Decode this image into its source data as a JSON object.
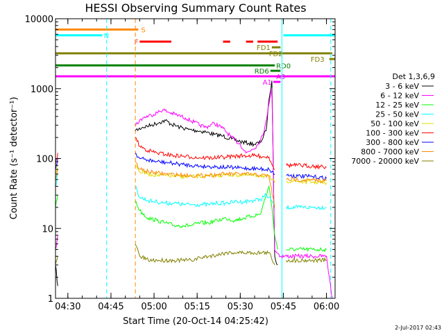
{
  "chart_data": {
    "type": "line",
    "title": "HESSI Observing Summary Count Rates",
    "xlabel": "Start Time (20-Oct-14 04:25:42)",
    "ylabel": "Count Rate (s⁻¹ detector⁻¹)",
    "x_range": [
      "04:25:42",
      "06:03:00"
    ],
    "y_range": [
      1,
      10000
    ],
    "y_scale": "log",
    "x_ticks": [
      "04:30",
      "04:45",
      "05:00",
      "05:15",
      "05:30",
      "05:45",
      "06:00"
    ],
    "y_ticks": [
      "1",
      "10",
      "100",
      "1000",
      "10000"
    ],
    "timestamp": "2-Jul-2017 02:43",
    "legend": {
      "title": "Det 1,3,6,9",
      "placement": "right"
    },
    "series": [
      {
        "name": "3 - 6 keV",
        "color": "#000000",
        "data": [
          [
            "04:25:42",
            3
          ],
          [
            "04:26:30",
            1.5
          ],
          [
            "04:27:00",
            null
          ],
          [
            "04:53:30",
            250
          ],
          [
            "04:56",
            280
          ],
          [
            "04:59",
            300
          ],
          [
            "05:02",
            330
          ],
          [
            "05:04",
            350
          ],
          [
            "05:06",
            310
          ],
          [
            "05:09",
            280
          ],
          [
            "05:12",
            260
          ],
          [
            "05:15",
            250
          ],
          [
            "05:18",
            240
          ],
          [
            "05:21",
            220
          ],
          [
            "05:24",
            210
          ],
          [
            "05:27",
            190
          ],
          [
            "05:30",
            175
          ],
          [
            "05:33",
            165
          ],
          [
            "05:35",
            160
          ],
          [
            "05:37",
            170
          ],
          [
            "05:39",
            250
          ],
          [
            "05:40",
            700
          ],
          [
            "05:41",
            1300
          ],
          [
            "05:42",
            4
          ],
          [
            "05:43",
            3
          ],
          [
            "05:44",
            null
          ]
        ]
      },
      {
        "name": "6 - 12 keV",
        "color": "#ff00ff",
        "data": [
          [
            "04:25:42",
            5
          ],
          [
            "04:26:30",
            8
          ],
          [
            "04:27:00",
            null
          ],
          [
            "04:53:30",
            300
          ],
          [
            "04:56",
            380
          ],
          [
            "04:59",
            420
          ],
          [
            "05:01",
            450
          ],
          [
            "05:03",
            500
          ],
          [
            "05:05",
            460
          ],
          [
            "05:08",
            420
          ],
          [
            "05:11",
            380
          ],
          [
            "05:14",
            330
          ],
          [
            "05:16",
            300
          ],
          [
            "05:18",
            280
          ],
          [
            "05:21",
            320
          ],
          [
            "05:24",
            270
          ],
          [
            "05:27",
            200
          ],
          [
            "05:30",
            160
          ],
          [
            "05:32",
            120
          ],
          [
            "05:34",
            135
          ],
          [
            "05:36",
            155
          ],
          [
            "05:38",
            220
          ],
          [
            "05:40",
            600
          ],
          [
            "05:41",
            1000
          ],
          [
            "05:42",
            5
          ],
          [
            "05:44",
            4
          ],
          [
            "05:50",
            4
          ],
          [
            "05:55",
            4
          ],
          [
            "06:00",
            4
          ],
          [
            "06:01",
            2
          ],
          [
            "06:02",
            1
          ]
        ]
      },
      {
        "name": "12 - 25 keV",
        "color": "#00ff00",
        "data": [
          [
            "04:25:42",
            20
          ],
          [
            "04:26:30",
            30
          ],
          [
            "04:27:00",
            null
          ],
          [
            "04:53:30",
            25
          ],
          [
            "04:55",
            18
          ],
          [
            "04:58",
            14
          ],
          [
            "05:01",
            13
          ],
          [
            "05:04",
            12
          ],
          [
            "05:07",
            11
          ],
          [
            "05:10",
            11
          ],
          [
            "05:13",
            11
          ],
          [
            "05:16",
            12
          ],
          [
            "05:19",
            12
          ],
          [
            "05:22",
            13
          ],
          [
            "05:25",
            14
          ],
          [
            "05:28",
            13
          ],
          [
            "05:31",
            14
          ],
          [
            "05:34",
            15
          ],
          [
            "05:37",
            16
          ],
          [
            "05:39",
            30
          ],
          [
            "05:40",
            40
          ],
          [
            "05:41",
            20
          ],
          [
            "05:42",
            8
          ],
          [
            "05:43",
            5
          ],
          [
            "05:44",
            null
          ],
          [
            "05:46",
            5
          ],
          [
            "05:50",
            5
          ],
          [
            "05:55",
            5
          ],
          [
            "06:00",
            5
          ]
        ]
      },
      {
        "name": "25 - 50 keV",
        "color": "#00ffff",
        "data": [
          [
            "04:25:42",
            40
          ],
          [
            "04:26:30",
            60
          ],
          [
            "04:27:00",
            null
          ],
          [
            "04:53:30",
            40
          ],
          [
            "04:55",
            28
          ],
          [
            "04:58",
            25
          ],
          [
            "05:01",
            24
          ],
          [
            "05:04",
            23
          ],
          [
            "05:07",
            23
          ],
          [
            "05:10",
            22
          ],
          [
            "05:13",
            22
          ],
          [
            "05:16",
            22
          ],
          [
            "05:19",
            22
          ],
          [
            "05:22",
            23
          ],
          [
            "05:25",
            23
          ],
          [
            "05:28",
            24
          ],
          [
            "05:31",
            24
          ],
          [
            "05:34",
            25
          ],
          [
            "05:37",
            26
          ],
          [
            "05:39",
            30
          ],
          [
            "05:41",
            25
          ],
          [
            "05:42",
            20
          ],
          [
            "05:43",
            null
          ],
          [
            "05:46",
            20
          ],
          [
            "05:50",
            20
          ],
          [
            "05:55",
            20
          ],
          [
            "06:00",
            20
          ]
        ]
      },
      {
        "name": "50 - 100 keV",
        "color": "#dddd00",
        "data": [
          [
            "04:25:42",
            60
          ],
          [
            "04:26:30",
            80
          ],
          [
            "04:27:00",
            null
          ],
          [
            "04:53:30",
            80
          ],
          [
            "04:55",
            65
          ],
          [
            "04:58",
            60
          ],
          [
            "05:01",
            58
          ],
          [
            "05:04",
            57
          ],
          [
            "05:07",
            56
          ],
          [
            "05:10",
            55
          ],
          [
            "05:13",
            55
          ],
          [
            "05:16",
            55
          ],
          [
            "05:19",
            56
          ],
          [
            "05:22",
            57
          ],
          [
            "05:25",
            58
          ],
          [
            "05:28",
            58
          ],
          [
            "05:31",
            58
          ],
          [
            "05:34",
            57
          ],
          [
            "05:37",
            57
          ],
          [
            "05:40",
            55
          ],
          [
            "05:42",
            45
          ],
          [
            "05:43",
            null
          ],
          [
            "05:46",
            48
          ],
          [
            "05:50",
            47
          ],
          [
            "05:55",
            46
          ],
          [
            "06:00",
            45
          ]
        ]
      },
      {
        "name": "100 - 300 keV",
        "color": "#ff0000",
        "data": [
          [
            "04:25:42",
            80
          ],
          [
            "04:26:30",
            120
          ],
          [
            "04:27:00",
            null
          ],
          [
            "04:53:30",
            200
          ],
          [
            "04:55",
            150
          ],
          [
            "04:58",
            130
          ],
          [
            "05:01",
            120
          ],
          [
            "05:04",
            115
          ],
          [
            "05:07",
            110
          ],
          [
            "05:10",
            108
          ],
          [
            "05:13",
            105
          ],
          [
            "05:16",
            103
          ],
          [
            "05:19",
            102
          ],
          [
            "05:22",
            103
          ],
          [
            "05:25",
            105
          ],
          [
            "05:28",
            108
          ],
          [
            "05:31",
            110
          ],
          [
            "05:34",
            110
          ],
          [
            "05:37",
            108
          ],
          [
            "05:40",
            105
          ],
          [
            "05:42",
            70
          ],
          [
            "05:43",
            null
          ],
          [
            "05:46",
            80
          ],
          [
            "05:50",
            80
          ],
          [
            "05:55",
            78
          ],
          [
            "06:00",
            75
          ]
        ]
      },
      {
        "name": "300 - 800 keV",
        "color": "#0000ff",
        "data": [
          [
            "04:25:42",
            70
          ],
          [
            "04:26:30",
            100
          ],
          [
            "04:27:00",
            null
          ],
          [
            "04:53:30",
            120
          ],
          [
            "04:55",
            100
          ],
          [
            "04:58",
            95
          ],
          [
            "05:01",
            90
          ],
          [
            "05:04",
            88
          ],
          [
            "05:07",
            85
          ],
          [
            "05:10",
            82
          ],
          [
            "05:13",
            80
          ],
          [
            "05:16",
            78
          ],
          [
            "05:19",
            77
          ],
          [
            "05:22",
            76
          ],
          [
            "05:25",
            75
          ],
          [
            "05:28",
            74
          ],
          [
            "05:31",
            73
          ],
          [
            "05:34",
            72
          ],
          [
            "05:37",
            71
          ],
          [
            "05:40",
            70
          ],
          [
            "05:42",
            60
          ],
          [
            "05:43",
            null
          ],
          [
            "05:46",
            58
          ],
          [
            "05:50",
            56
          ],
          [
            "05:55",
            55
          ],
          [
            "06:00",
            52
          ]
        ]
      },
      {
        "name": "800 - 7000 keV",
        "color": "#ff8800",
        "data": [
          [
            "04:25:42",
            50
          ],
          [
            "04:26:30",
            70
          ],
          [
            "04:27:00",
            null
          ],
          [
            "04:53:30",
            90
          ],
          [
            "04:55",
            70
          ],
          [
            "04:58",
            65
          ],
          [
            "05:01",
            62
          ],
          [
            "05:04",
            60
          ],
          [
            "05:07",
            59
          ],
          [
            "05:10",
            58
          ],
          [
            "05:13",
            57
          ],
          [
            "05:16",
            57
          ],
          [
            "05:19",
            58
          ],
          [
            "05:22",
            59
          ],
          [
            "05:25",
            60
          ],
          [
            "05:28",
            60
          ],
          [
            "05:31",
            60
          ],
          [
            "05:34",
            59
          ],
          [
            "05:37",
            58
          ],
          [
            "05:40",
            56
          ],
          [
            "05:42",
            20
          ],
          [
            "05:43",
            null
          ],
          [
            "05:46",
            50
          ],
          [
            "05:50",
            50
          ],
          [
            "05:55",
            49
          ],
          [
            "06:00",
            48
          ]
        ]
      },
      {
        "name": "7000 - 20000 keV",
        "color": "#808000",
        "data": [
          [
            "04:25:42",
            3
          ],
          [
            "04:26:30",
            4
          ],
          [
            "04:27:00",
            null
          ],
          [
            "04:53:30",
            6
          ],
          [
            "04:55",
            4
          ],
          [
            "04:58",
            3.5
          ],
          [
            "05:01",
            3.5
          ],
          [
            "05:04",
            3.5
          ],
          [
            "05:07",
            3.5
          ],
          [
            "05:10",
            3.5
          ],
          [
            "05:13",
            3.5
          ],
          [
            "05:16",
            3.8
          ],
          [
            "05:19",
            4
          ],
          [
            "05:22",
            4.2
          ],
          [
            "05:25",
            4.5
          ],
          [
            "05:28",
            4.5
          ],
          [
            "05:31",
            4.5
          ],
          [
            "05:34",
            4.5
          ],
          [
            "05:37",
            4.5
          ],
          [
            "05:40",
            4.5
          ],
          [
            "05:42",
            3
          ],
          [
            "05:43",
            null
          ],
          [
            "05:46",
            3.5
          ],
          [
            "05:50",
            3.5
          ],
          [
            "05:55",
            3.5
          ],
          [
            "06:00",
            3.5
          ]
        ]
      }
    ],
    "flags": [
      {
        "label": "S",
        "color": "#ff8800",
        "y": 7000,
        "segments": [
          [
            "04:25:42",
            "04:54:30"
          ]
        ],
        "label_at": "04:55:30",
        "label_side": "right"
      },
      {
        "label": "N",
        "color": "#00ffff",
        "y": 5800,
        "segments": [
          [
            "04:25:42",
            "04:42:00"
          ],
          [
            "05:45:00",
            "06:03:00"
          ]
        ],
        "label_at": "04:42:30",
        "label_side": "right"
      },
      {
        "label": "F",
        "color": "#ff0000",
        "y": 4700,
        "segments": [
          [
            "04:55:00",
            "05:06:00"
          ],
          [
            "05:24:00",
            "05:26:30"
          ],
          [
            "05:32:00",
            "05:34:30"
          ],
          [
            "05:36:00",
            "05:43:00"
          ]
        ],
        "label_at": "04:54:30",
        "label_side": "left"
      },
      {
        "label": "FD1",
        "color": "#808000",
        "y": 3900,
        "segments": [
          [
            "05:41:00",
            "05:44:00"
          ]
        ],
        "label_at": "05:40:30",
        "label_side": "left"
      },
      {
        "label": "FD2",
        "color": "#808000",
        "y": 3200,
        "segments": [
          [
            "04:25:42",
            "06:02:00"
          ]
        ],
        "label_at": "05:40:00",
        "label_side": "right"
      },
      {
        "label": "FD3",
        "color": "#808000",
        "y": 2650,
        "segments": [
          [
            "06:01:00",
            "06:03:00"
          ]
        ],
        "label_at": "05:54:30",
        "label_side": "right"
      },
      {
        "label": "RD0",
        "color": "#008000",
        "y": 2150,
        "segments": [
          [
            "04:25:42",
            "05:42:00"
          ]
        ],
        "label_at": "05:42:30",
        "label_side": "right"
      },
      {
        "label": "RD6",
        "color": "#008000",
        "y": 1800,
        "segments": [
          [
            "05:40:30",
            "05:44:00"
          ]
        ],
        "label_at": "05:40:00",
        "label_side": "left"
      },
      {
        "label": "A0",
        "color": "#ff00ff",
        "y": 1500,
        "segments": [
          [
            "04:25:42",
            "06:03:00"
          ]
        ],
        "label_at": "05:42:30",
        "label_side": "right"
      },
      {
        "label": "A1",
        "color": "#ff00ff",
        "y": 1250,
        "segments": [
          [
            "05:41:30",
            "05:44:00"
          ]
        ],
        "label_at": "05:41:00",
        "label_side": "left"
      }
    ],
    "vlines": [
      {
        "t": "04:25:42",
        "color": "#00ffff",
        "style": "solid"
      },
      {
        "t": "04:43:30",
        "color": "#00ffff",
        "style": "dashed"
      },
      {
        "t": "04:53:30",
        "color": "#ff8800",
        "style": "dashed"
      },
      {
        "t": "05:44:30",
        "color": "#00ffff",
        "style": "solid"
      },
      {
        "t": "06:01:30",
        "color": "#00ffff",
        "style": "dashed"
      }
    ]
  }
}
